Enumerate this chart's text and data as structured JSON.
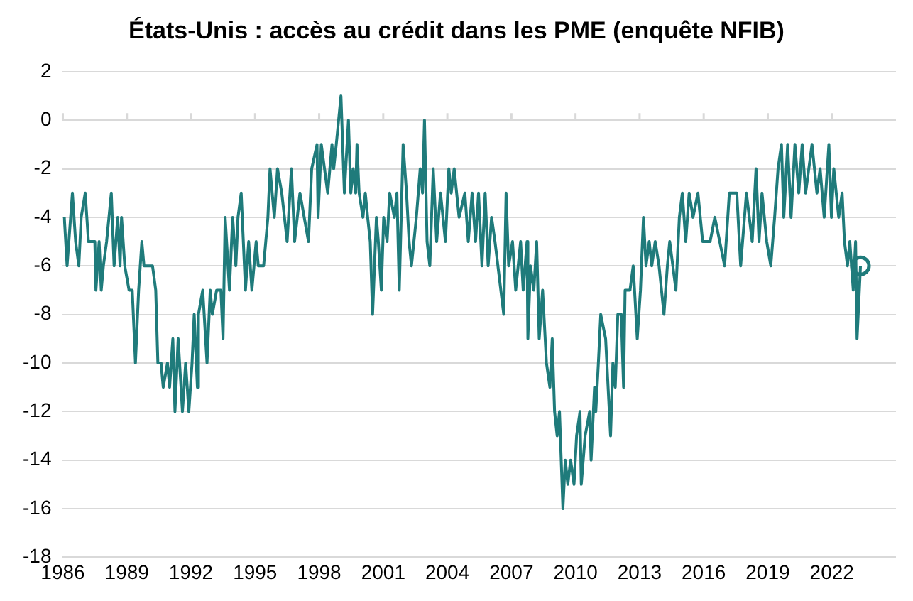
{
  "chart_data": {
    "type": "line",
    "title": "États-Unis : accès au crédit dans les PME (enquête NFIB)",
    "xlim": [
      1986,
      2025
    ],
    "xticks": [
      1986,
      1989,
      1992,
      1995,
      1998,
      2001,
      2004,
      2007,
      2010,
      2013,
      2016,
      2019,
      2022
    ],
    "ylim": [
      -18,
      2
    ],
    "yticks": [
      -18,
      -16,
      -14,
      -12,
      -10,
      -8,
      -6,
      -4,
      -2,
      0,
      2
    ],
    "grid": "y",
    "legend": false,
    "line_style": "solid",
    "series": [
      {
        "color": "#1f7b7b",
        "marker": "none",
        "x": [
          1986.07,
          1986.2,
          1986.45,
          1986.6,
          1986.75,
          1986.86,
          1987.05,
          1987.2,
          1987.5,
          1987.55,
          1987.7,
          1987.8,
          1987.9,
          1988.05,
          1988.27,
          1988.4,
          1988.57,
          1988.68,
          1988.75,
          1988.9,
          1989.1,
          1989.25,
          1989.4,
          1989.55,
          1989.7,
          1989.8,
          1990.2,
          1990.35,
          1990.45,
          1990.6,
          1990.7,
          1990.9,
          1991.0,
          1991.15,
          1991.25,
          1991.4,
          1991.6,
          1991.75,
          1991.9,
          1992.05,
          1992.15,
          1992.3,
          1992.35,
          1992.55,
          1992.75,
          1992.9,
          1993.0,
          1993.2,
          1993.4,
          1993.5,
          1993.6,
          1993.8,
          1993.95,
          1994.1,
          1994.2,
          1994.35,
          1994.55,
          1994.7,
          1994.85,
          1995.05,
          1995.15,
          1995.4,
          1995.5,
          1995.6,
          1995.7,
          1995.9,
          1996.05,
          1996.25,
          1996.5,
          1996.7,
          1996.85,
          1997.1,
          1997.5,
          1997.65,
          1997.9,
          1997.95,
          1998.1,
          1998.4,
          1998.6,
          1998.68,
          1998.8,
          1999.02,
          1999.18,
          1999.37,
          1999.48,
          1999.59,
          1999.71,
          1999.77,
          1999.87,
          2000.05,
          2000.16,
          2000.27,
          2000.39,
          2000.5,
          2000.68,
          2000.77,
          2000.91,
          2001.02,
          2001.18,
          2001.3,
          2001.52,
          2001.64,
          2001.75,
          2001.93,
          2002.09,
          2002.21,
          2002.32,
          2002.55,
          2002.73,
          2002.84,
          2002.93,
          2003.05,
          2003.18,
          2003.34,
          2003.5,
          2003.68,
          2003.91,
          2004.07,
          2004.18,
          2004.32,
          2004.55,
          2004.82,
          2004.98,
          2005.16,
          2005.32,
          2005.46,
          2005.62,
          2005.77,
          2005.91,
          2006.07,
          2006.23,
          2006.64,
          2006.75,
          2006.87,
          2007.05,
          2007.2,
          2007.43,
          2007.55,
          2007.73,
          2007.77,
          2007.89,
          2008.05,
          2008.18,
          2008.3,
          2008.46,
          2008.64,
          2008.8,
          2008.91,
          2009.02,
          2009.14,
          2009.25,
          2009.41,
          2009.52,
          2009.64,
          2009.77,
          2009.93,
          2010.05,
          2010.21,
          2010.27,
          2010.45,
          2010.66,
          2010.73,
          2010.89,
          2010.95,
          2011.07,
          2011.18,
          2011.41,
          2011.64,
          2011.75,
          2011.86,
          2011.98,
          2012.14,
          2012.25,
          2012.32,
          2012.55,
          2012.7,
          2012.89,
          2013.04,
          2013.18,
          2013.3,
          2013.45,
          2013.57,
          2013.73,
          2013.91,
          2014.14,
          2014.3,
          2014.41,
          2014.7,
          2014.86,
          2015.0,
          2015.16,
          2015.32,
          2015.5,
          2015.73,
          2015.95,
          2016.3,
          2016.52,
          2016.98,
          2017.2,
          2017.55,
          2017.73,
          2018.0,
          2018.27,
          2018.45,
          2018.59,
          2018.73,
          2018.95,
          2019.14,
          2019.32,
          2019.48,
          2019.64,
          2019.75,
          2019.93,
          2020.09,
          2020.27,
          2020.45,
          2020.61,
          2020.77,
          2021.07,
          2021.3,
          2021.45,
          2021.64,
          2021.86,
          2021.98,
          2022.09,
          2022.32,
          2022.48,
          2022.59,
          2022.73,
          2022.84,
          2023.0,
          2023.11,
          2023.18,
          2023.34
        ],
        "values": [
          -4,
          -6,
          -3,
          -5,
          -6,
          -4,
          -3,
          -5,
          -5,
          -7,
          -5,
          -7,
          -6,
          -5,
          -3,
          -6,
          -4,
          -6,
          -4,
          -6,
          -7,
          -7,
          -10,
          -7,
          -5,
          -6,
          -6,
          -7,
          -10,
          -10,
          -11,
          -10,
          -11,
          -9,
          -12,
          -9,
          -12,
          -10,
          -12,
          -10,
          -8,
          -11,
          -8,
          -7,
          -10,
          -7,
          -8,
          -7,
          -7,
          -9,
          -4,
          -7,
          -4,
          -6,
          -4,
          -3,
          -7,
          -5,
          -7,
          -5,
          -6,
          -6,
          -5,
          -4,
          -2,
          -4,
          -2,
          -3,
          -5,
          -2,
          -5,
          -3,
          -5,
          -2,
          -1,
          -4,
          -1,
          -3,
          -1,
          -2,
          -1,
          1,
          -3,
          0,
          -3,
          -2,
          -3,
          -1,
          -3,
          -4,
          -3,
          -4,
          -5,
          -8,
          -4,
          -5,
          -7,
          -4,
          -5,
          -3,
          -4,
          -3,
          -7,
          -1,
          -3,
          -5,
          -6,
          -4,
          -2,
          -3,
          0,
          -5,
          -6,
          -2,
          -5,
          -3,
          -5,
          -2,
          -3,
          -2,
          -4,
          -3,
          -5,
          -3,
          -5,
          -3,
          -6,
          -3,
          -6,
          -4,
          -5,
          -8,
          -3,
          -6,
          -5,
          -7,
          -5,
          -7,
          -5,
          -9,
          -6,
          -7,
          -5,
          -9,
          -7,
          -10,
          -11,
          -9,
          -12,
          -13,
          -12,
          -16,
          -14,
          -15,
          -14,
          -15,
          -13,
          -12,
          -15,
          -13,
          -12,
          -14,
          -11,
          -12,
          -10,
          -8,
          -9,
          -13,
          -10,
          -11,
          -8,
          -8,
          -11,
          -7,
          -7,
          -6,
          -9,
          -7,
          -4,
          -6,
          -5,
          -6,
          -5,
          -6,
          -8,
          -6,
          -5,
          -7,
          -4,
          -3,
          -5,
          -3,
          -4,
          -3,
          -5,
          -5,
          -4,
          -6,
          -3,
          -3,
          -6,
          -3,
          -5,
          -2,
          -5,
          -3,
          -5,
          -6,
          -4,
          -2,
          -1,
          -4,
          -1,
          -4,
          -1,
          -3,
          -1,
          -3,
          -1,
          -3,
          -2,
          -4,
          -1,
          -4,
          -2,
          -4,
          -3,
          -5,
          -6,
          -5,
          -7,
          -5,
          -9,
          -6
        ]
      },
      {
        "type": "scatter",
        "color": "#1f7b7b",
        "marker": "circle",
        "x": [
          2023.34
        ],
        "values": [
          -6
        ]
      }
    ]
  }
}
